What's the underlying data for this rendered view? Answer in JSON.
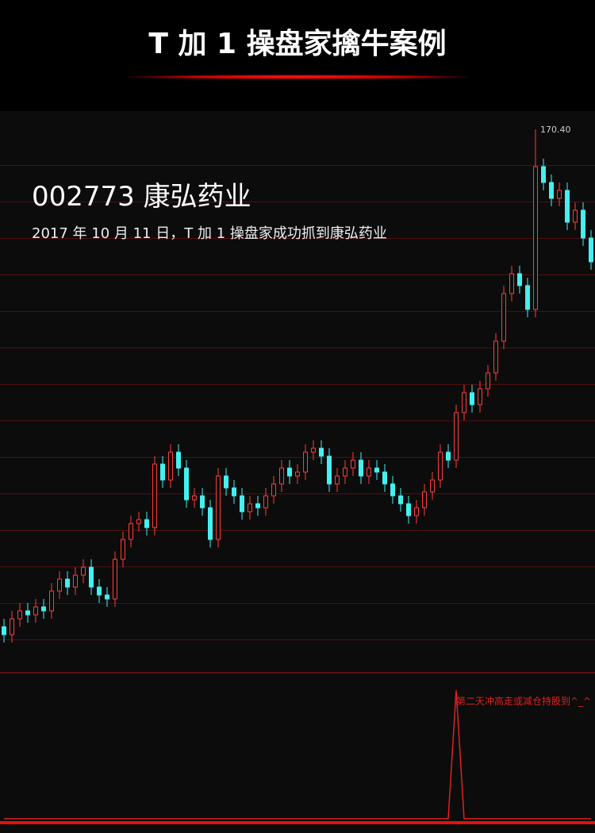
{
  "header": {
    "title": "T 加 1 操盘家擒牛案例"
  },
  "overlay": {
    "stock": "002773 康弘药业",
    "caption": "2017 年 10 月 11 日，T 加 1 操盘家成功抓到康弘药业"
  },
  "chart_data": {
    "type": "candlestick",
    "up_color": "#ff3c3c",
    "down_color": "#44f0f0",
    "ylim": [
      33.4,
      170.4
    ],
    "max_label": "170.40",
    "open": [
      45,
      43,
      47,
      49,
      48,
      50,
      49,
      54,
      57,
      55,
      58,
      60,
      55,
      53,
      52,
      62,
      67,
      71,
      72,
      70,
      86,
      82,
      89,
      85,
      77,
      78,
      75,
      67,
      83,
      80,
      78,
      74,
      76,
      75,
      78,
      81,
      85,
      83,
      84,
      89,
      90,
      88,
      81,
      83,
      85,
      87,
      83,
      85,
      84,
      81,
      78,
      76,
      73,
      75,
      79,
      82,
      89,
      87,
      99,
      104,
      101,
      105,
      109,
      117,
      129,
      134,
      131,
      125,
      161,
      157,
      153,
      155,
      147,
      150,
      143
    ],
    "high": [
      47,
      49,
      51,
      51,
      52,
      52,
      56,
      59,
      59,
      60,
      62,
      62,
      57,
      55,
      64,
      69,
      73,
      74,
      74,
      88,
      88,
      91,
      91,
      87,
      80,
      80,
      77,
      85,
      85,
      82,
      80,
      78,
      78,
      80,
      83,
      87,
      87,
      86,
      91,
      92,
      92,
      90,
      85,
      87,
      89,
      89,
      87,
      87,
      86,
      83,
      80,
      78,
      77,
      81,
      84,
      91,
      91,
      101,
      106,
      106,
      107,
      111,
      119,
      131,
      136,
      136,
      133,
      170.4,
      163,
      159,
      157,
      157,
      152,
      152,
      145
    ],
    "low": [
      41,
      41,
      45,
      46,
      46,
      47,
      47,
      52,
      53,
      53,
      56,
      53,
      51,
      50,
      50,
      60,
      65,
      69,
      68,
      68,
      80,
      80,
      83,
      75,
      75,
      73,
      65,
      65,
      78,
      76,
      72,
      72,
      73,
      73,
      76,
      79,
      81,
      81,
      82,
      87,
      86,
      79,
      79,
      81,
      83,
      81,
      81,
      82,
      79,
      76,
      74,
      71,
      71,
      73,
      77,
      80,
      85,
      85,
      97,
      99,
      99,
      103,
      107,
      115,
      127,
      129,
      123,
      123,
      155,
      151,
      151,
      145,
      145,
      141,
      135
    ],
    "close": [
      43,
      47,
      49,
      48,
      50,
      49,
      54,
      57,
      55,
      58,
      60,
      55,
      53,
      52,
      62,
      67,
      71,
      72,
      70,
      86,
      82,
      89,
      85,
      77,
      78,
      75,
      67,
      83,
      80,
      78,
      74,
      76,
      75,
      78,
      81,
      85,
      83,
      84,
      89,
      90,
      88,
      81,
      83,
      85,
      87,
      83,
      85,
      84,
      81,
      78,
      76,
      73,
      75,
      79,
      82,
      89,
      87,
      99,
      104,
      101,
      105,
      109,
      117,
      129,
      134,
      131,
      125,
      161,
      157,
      153,
      155,
      147,
      150,
      143,
      137
    ],
    "indicator": {
      "color": "#e02020",
      "label": "第二天冲高走或减仓持股到^_^",
      "ylim": [
        0,
        1
      ],
      "values": [
        0,
        0,
        0,
        0,
        0,
        0,
        0,
        0,
        0,
        0,
        0,
        0,
        0,
        0,
        0,
        0,
        0,
        0,
        0,
        0,
        0,
        0,
        0,
        0,
        0,
        0,
        0,
        0,
        0,
        0,
        0,
        0,
        0,
        0,
        0,
        0,
        0,
        0,
        0,
        0,
        0,
        0,
        0,
        0,
        0,
        0,
        0,
        0,
        0,
        0,
        0,
        0,
        0,
        0,
        0,
        0,
        0,
        1,
        0,
        0,
        0,
        0,
        0,
        0,
        0,
        0,
        0,
        0,
        0,
        0,
        0,
        0,
        0,
        0,
        0
      ]
    }
  }
}
